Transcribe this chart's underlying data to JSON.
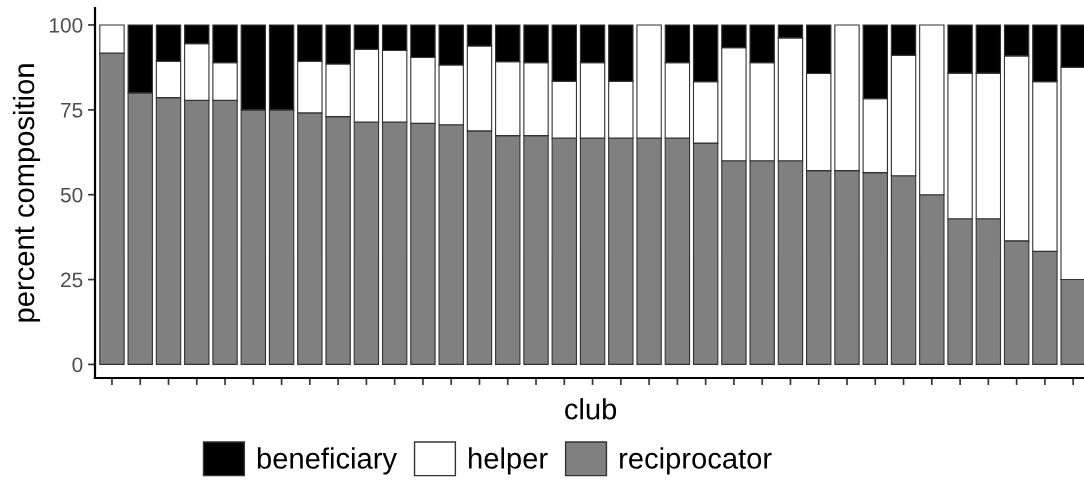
{
  "chart_data": {
    "type": "bar",
    "stacked": true,
    "xlabel": "club",
    "ylabel": "percent composition",
    "categories": [
      null,
      null,
      null,
      null,
      null,
      null,
      null,
      null,
      null,
      null,
      null,
      null,
      null,
      null,
      null,
      null,
      null,
      null,
      null,
      null,
      null,
      null,
      null,
      null,
      null,
      null,
      null,
      null,
      null,
      null,
      null,
      null,
      null,
      null,
      null
    ],
    "series": [
      {
        "name": "reciprocator",
        "color": "#808080",
        "values": [
          91.7,
          80,
          78.6,
          77.8,
          77.8,
          75,
          75,
          74.1,
          73,
          71.4,
          71.4,
          71,
          70.6,
          68.8,
          67.4,
          67.4,
          66.7,
          66.7,
          66.7,
          66.7,
          66.7,
          65.2,
          60,
          60,
          60,
          57.1,
          57.1,
          56.5,
          55.6,
          50,
          42.9,
          42.9,
          36.4,
          33.3,
          25
        ]
      },
      {
        "name": "helper",
        "color": "#ffffff",
        "values": [
          8.3,
          0,
          10.7,
          16.7,
          11.1,
          0,
          0,
          15.2,
          15.5,
          21.4,
          21.1,
          19.4,
          17.6,
          25,
          21.8,
          21.5,
          16.7,
          22.2,
          16.7,
          33.3,
          22.2,
          18.1,
          33.3,
          28.9,
          36.2,
          28.6,
          42.9,
          21.8,
          35.5,
          50,
          42.9,
          42.9,
          54.5,
          50,
          62.5
        ]
      },
      {
        "name": "beneficiary",
        "color": "#000000",
        "values": [
          0,
          20,
          10.7,
          5.5,
          11.1,
          25,
          25,
          10.7,
          11.5,
          7.2,
          7.5,
          9.6,
          11.8,
          6.2,
          10.8,
          11.1,
          16.6,
          11.1,
          16.6,
          0,
          11.1,
          16.7,
          6.7,
          11.1,
          3.8,
          14.3,
          0,
          21.7,
          8.9,
          0,
          14.2,
          14.2,
          9.1,
          16.7,
          12.5
        ]
      }
    ],
    "ylim": [
      -4,
      105
    ],
    "yticks": [
      0,
      25,
      50,
      75,
      100
    ],
    "grid": false,
    "legend": "bottom"
  }
}
